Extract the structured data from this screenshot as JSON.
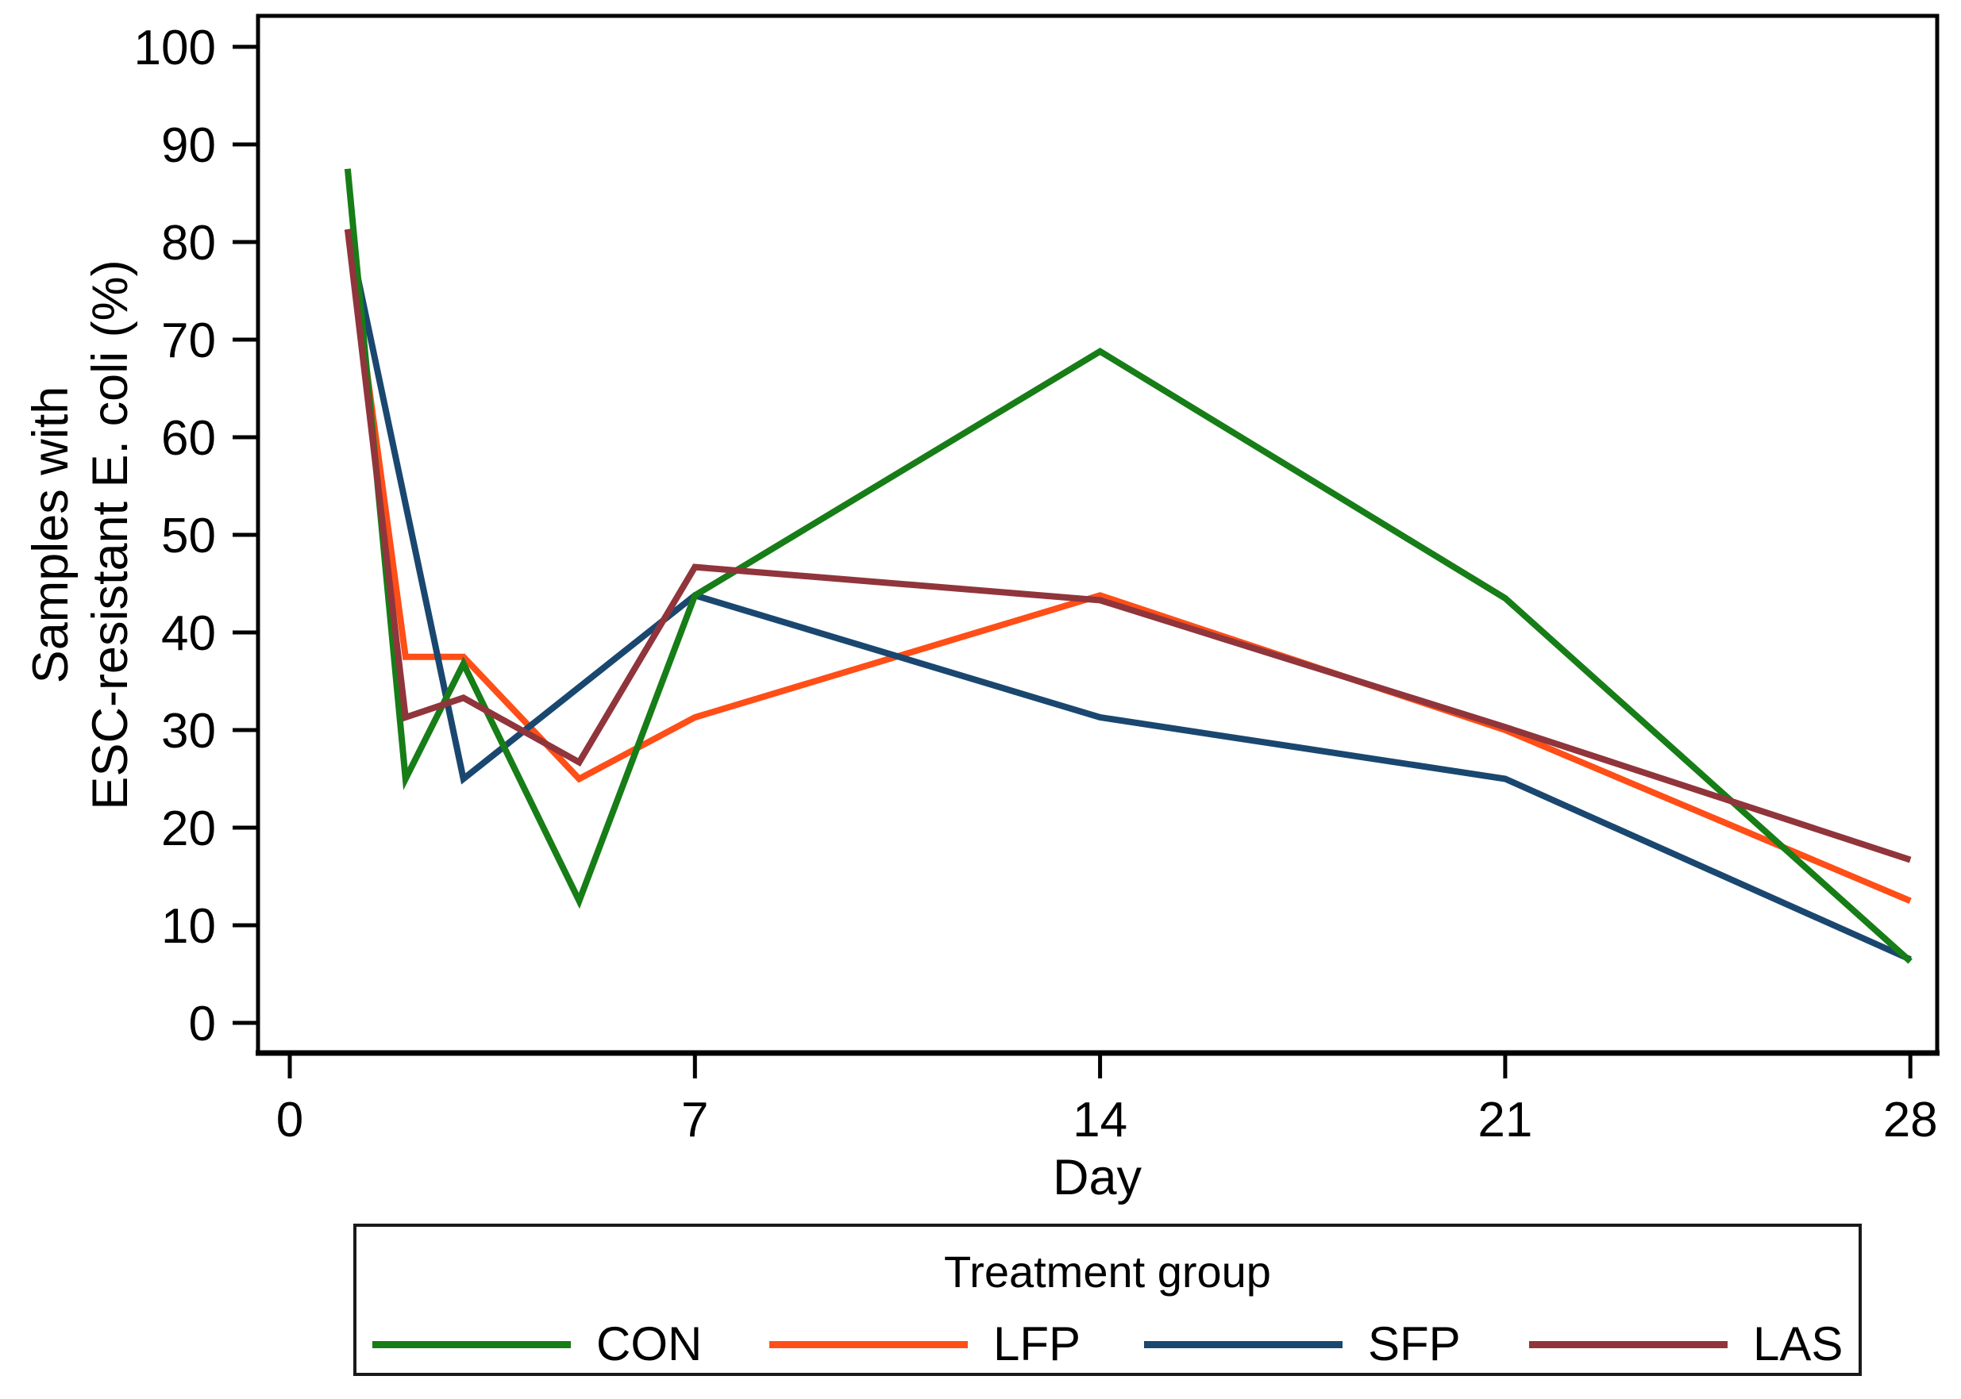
{
  "chart_data": {
    "type": "line",
    "title": "",
    "xlabel": "Day",
    "ylabel_lines": [
      "Samples with",
      "ESC-resistant E. coli (%)"
    ],
    "x_ticks": [
      0,
      7,
      14,
      21,
      28
    ],
    "y_ticks": [
      0,
      10,
      20,
      30,
      40,
      50,
      60,
      70,
      80,
      90,
      100
    ],
    "xlim": [
      0,
      28.5
    ],
    "ylim": [
      0,
      103
    ],
    "grid": "off",
    "legend": {
      "title": "Treatment group",
      "position": "bottom"
    },
    "series": [
      {
        "name": "LFP",
        "color": "#ff4e17",
        "x": [
          1,
          2,
          3,
          5,
          7,
          14,
          21,
          28
        ],
        "y": [
          81.3,
          37.5,
          37.5,
          25.0,
          31.3,
          43.8,
          30.0,
          12.5
        ]
      },
      {
        "name": "SFP",
        "color": "#1a476f",
        "x": [
          1,
          3,
          7,
          14,
          21,
          28
        ],
        "y": [
          81.3,
          25.0,
          43.8,
          31.3,
          25.0,
          6.5
        ]
      },
      {
        "name": "CON",
        "color": "#177d17",
        "x": [
          1,
          2,
          3,
          5,
          7,
          14,
          21,
          28
        ],
        "y": [
          87.5,
          25.0,
          36.8,
          12.5,
          43.8,
          68.8,
          43.5,
          6.3
        ]
      },
      {
        "name": "LAS",
        "color": "#90353b",
        "x": [
          1,
          2,
          3,
          5,
          7,
          14,
          21,
          28
        ],
        "y": [
          81.3,
          31.3,
          33.3,
          26.7,
          46.7,
          43.3,
          30.3,
          16.7
        ]
      }
    ],
    "legend_order": [
      "CON",
      "LFP",
      "SFP",
      "LAS"
    ]
  }
}
